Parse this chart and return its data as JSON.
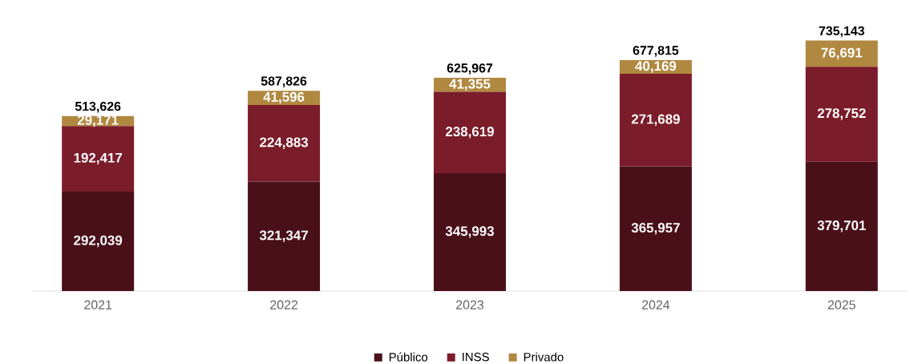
{
  "chart_data": {
    "type": "bar",
    "stacked": true,
    "categories": [
      "2021",
      "2022",
      "2023",
      "2024",
      "2025"
    ],
    "series": [
      {
        "name": "Público",
        "color": "#4a1019",
        "values": [
          292039,
          321347,
          345993,
          365957,
          379701
        ],
        "value_labels": [
          "292,039",
          "321,347",
          "345,993",
          "365,957",
          "379,701"
        ]
      },
      {
        "name": "INSS",
        "color": "#7b1c2a",
        "values": [
          192417,
          224883,
          238619,
          271689,
          278752
        ],
        "value_labels": [
          "192,417",
          "224,883",
          "238,619",
          "271,689",
          "278,752"
        ]
      },
      {
        "name": "Privado",
        "color": "#b08840",
        "values": [
          29171,
          41596,
          41355,
          40169,
          76691
        ],
        "value_labels": [
          "29,171",
          "41,596",
          "41,355",
          "40,169",
          "76,691"
        ]
      }
    ],
    "totals": [
      "513,626",
      "587,826",
      "625,967",
      "677,815",
      "735,143"
    ],
    "legend": "bottom"
  }
}
